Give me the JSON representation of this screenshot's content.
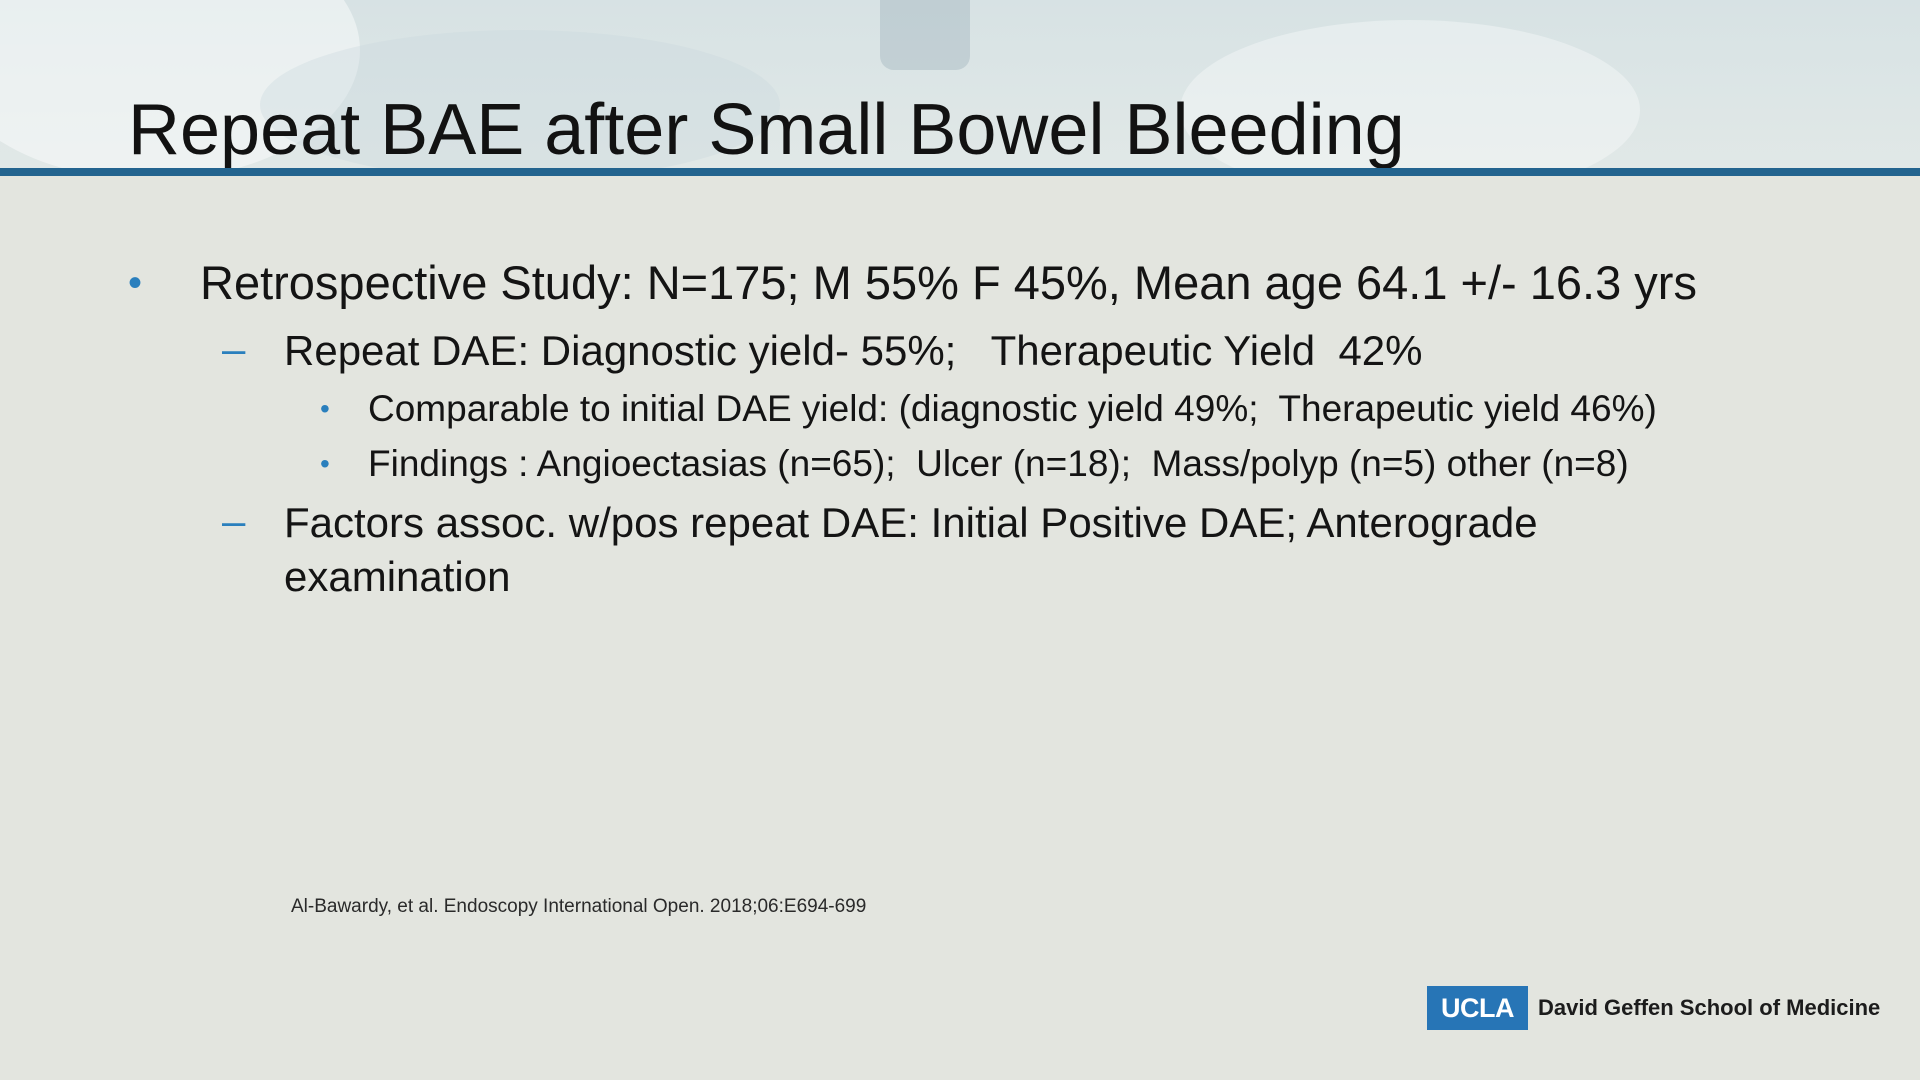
{
  "slide": {
    "title": "Repeat BAE after Small Bowel Bleeding",
    "bullets": {
      "l1_marker": "•",
      "l2_marker": "–",
      "l3_marker": "•",
      "item1": "Retrospective Study: N=175; M 55% F 45%, Mean age 64.1 +/- 16.3 yrs",
      "item2": "Repeat DAE: Diagnostic yield- 55%;   Therapeutic Yield  42%",
      "item3": "Comparable to initial DAE yield: (diagnostic yield 49%;  Therapeutic yield 46%)",
      "item4": "Findings : Angioectasias (n=65);  Ulcer (n=18);  Mass/polyp (n=5) other (n=8)",
      "item5": "Factors assoc. w/pos repeat DAE: Initial Positive DAE; Anterograde examination"
    },
    "citation": "Al-Bawardy, et al. Endoscopy International Open. 2018;06:E694-699",
    "footer": {
      "logo_text": "UCLA",
      "school": "David Geffen School of Medicine"
    },
    "colors": {
      "accent": "#23648f",
      "bullet": "#2a7fbd",
      "logo_bg": "#2775b6"
    }
  }
}
